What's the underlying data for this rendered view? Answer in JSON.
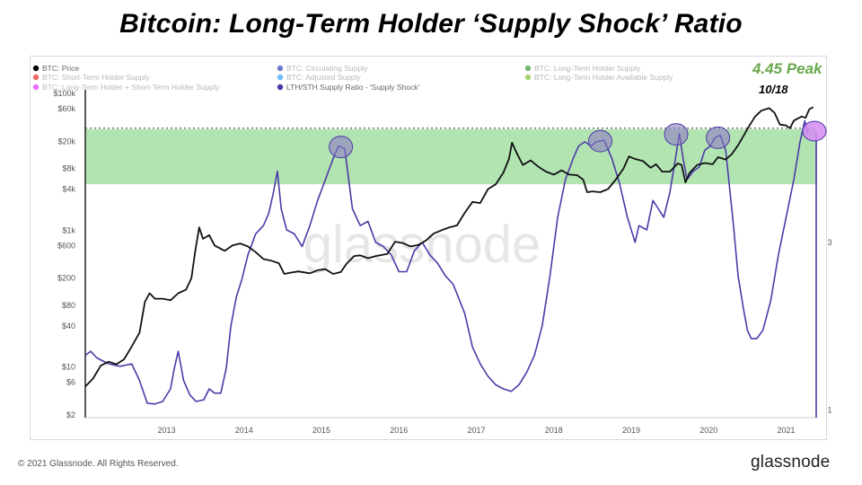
{
  "title": "Bitcoin: Long-Term Holder ‘Supply Shock’ Ratio",
  "footer": {
    "copyright": "© 2021 Glassnode. All Rights Reserved.",
    "brand": "glassnode"
  },
  "watermark": "glassnode",
  "annotation": {
    "peak_label": "4.45 Peak",
    "peak_date": "10/18"
  },
  "chart_data": {
    "type": "line",
    "legend": [
      {
        "name": "BTC: Price",
        "color": "#000000",
        "faded": false
      },
      {
        "name": "BTC: Short-Term Holder Supply",
        "color": "#e53935",
        "faded": true
      },
      {
        "name": "BTC: Long-Term Holder + Short-Term Holder Supply",
        "color": "#e040fb",
        "faded": true
      },
      {
        "name": "BTC: Circulating Supply",
        "color": "#3f51b5",
        "faded": true
      },
      {
        "name": "BTC: Adjusted Supply",
        "color": "#42a5f5",
        "faded": true
      },
      {
        "name": "LTH/STH Supply Ratio - 'Supply Shock'",
        "color": "#4a3aa7",
        "faded": false
      },
      {
        "name": "BTC: Long-Term Holder Supply",
        "color": "#43a047",
        "faded": true
      },
      {
        "name": "BTC: Long-Term Holder Available Supply",
        "color": "#8bc34a",
        "faded": true
      }
    ],
    "x_ticks": [
      "2013",
      "2014",
      "2015",
      "2016",
      "2017",
      "2018",
      "2019",
      "2020",
      "2021"
    ],
    "x_tick_years": [
      2013,
      2014,
      2015,
      2016,
      2017,
      2018,
      2019,
      2020,
      2021
    ],
    "x_range": [
      2012.45,
      2021.9
    ],
    "y_left_scale": "log",
    "y_left_range": [
      2,
      100000
    ],
    "y_left_ticks": [
      {
        "label": "$2",
        "value": 2
      },
      {
        "label": "$6",
        "value": 6
      },
      {
        "label": "$10",
        "value": 10
      },
      {
        "label": "$40",
        "value": 40
      },
      {
        "label": "$80",
        "value": 80
      },
      {
        "label": "$200",
        "value": 200
      },
      {
        "label": "$600",
        "value": 600
      },
      {
        "label": "$1k",
        "value": 1000
      },
      {
        "label": "$4k",
        "value": 4000
      },
      {
        "label": "$8k",
        "value": 8000
      },
      {
        "label": "$20k",
        "value": 20000
      },
      {
        "label": "$60k",
        "value": 60000
      },
      {
        "label": "$100k",
        "value": 100000
      }
    ],
    "y_right_ticks": [
      {
        "label": "1",
        "value": 1
      },
      {
        "label": "3",
        "value": 3
      }
    ],
    "y_right_range": [
      0.95,
      4.8
    ],
    "band": {
      "color": "#a5dfa5",
      "y_low": 4700,
      "y_high": 30000,
      "dashed_line": 31000
    },
    "series": [
      {
        "name": "BTC: Price",
        "axis": "left",
        "color": "#111111",
        "points": [
          [
            2012.45,
            5.2
          ],
          [
            2012.55,
            6.8
          ],
          [
            2012.65,
            10.5
          ],
          [
            2012.75,
            12
          ],
          [
            2012.85,
            11
          ],
          [
            2012.95,
            13
          ],
          [
            2013.05,
            20
          ],
          [
            2013.15,
            32
          ],
          [
            2013.22,
            90
          ],
          [
            2013.28,
            120
          ],
          [
            2013.35,
            100
          ],
          [
            2013.45,
            100
          ],
          [
            2013.55,
            95
          ],
          [
            2013.65,
            120
          ],
          [
            2013.75,
            135
          ],
          [
            2013.82,
            200
          ],
          [
            2013.87,
            500
          ],
          [
            2013.92,
            1100
          ],
          [
            2013.97,
            750
          ],
          [
            2014.05,
            850
          ],
          [
            2014.12,
            600
          ],
          [
            2014.25,
            500
          ],
          [
            2014.35,
            600
          ],
          [
            2014.45,
            640
          ],
          [
            2014.55,
            580
          ],
          [
            2014.65,
            480
          ],
          [
            2014.75,
            380
          ],
          [
            2014.85,
            360
          ],
          [
            2014.95,
            330
          ],
          [
            2015.02,
            230
          ],
          [
            2015.1,
            240
          ],
          [
            2015.2,
            250
          ],
          [
            2015.35,
            235
          ],
          [
            2015.45,
            260
          ],
          [
            2015.55,
            270
          ],
          [
            2015.65,
            230
          ],
          [
            2015.75,
            245
          ],
          [
            2015.82,
            320
          ],
          [
            2015.92,
            420
          ],
          [
            2016.0,
            430
          ],
          [
            2016.1,
            390
          ],
          [
            2016.2,
            420
          ],
          [
            2016.35,
            450
          ],
          [
            2016.45,
            680
          ],
          [
            2016.55,
            650
          ],
          [
            2016.65,
            580
          ],
          [
            2016.75,
            610
          ],
          [
            2016.85,
            710
          ],
          [
            2016.95,
            900
          ],
          [
            2017.05,
            1000
          ],
          [
            2017.15,
            1100
          ],
          [
            2017.25,
            1180
          ],
          [
            2017.35,
            1800
          ],
          [
            2017.45,
            2600
          ],
          [
            2017.55,
            2500
          ],
          [
            2017.65,
            4000
          ],
          [
            2017.75,
            4700
          ],
          [
            2017.85,
            7000
          ],
          [
            2017.92,
            11000
          ],
          [
            2017.96,
            19000
          ],
          [
            2018.02,
            13500
          ],
          [
            2018.1,
            9000
          ],
          [
            2018.2,
            10500
          ],
          [
            2018.3,
            8500
          ],
          [
            2018.4,
            7200
          ],
          [
            2018.5,
            6500
          ],
          [
            2018.6,
            7500
          ],
          [
            2018.7,
            6500
          ],
          [
            2018.8,
            6400
          ],
          [
            2018.88,
            5500
          ],
          [
            2018.93,
            3600
          ],
          [
            2019.0,
            3700
          ],
          [
            2019.1,
            3600
          ],
          [
            2019.2,
            4000
          ],
          [
            2019.3,
            5500
          ],
          [
            2019.4,
            8000
          ],
          [
            2019.47,
            12000
          ],
          [
            2019.55,
            11000
          ],
          [
            2019.65,
            10300
          ],
          [
            2019.75,
            8200
          ],
          [
            2019.82,
            9200
          ],
          [
            2019.9,
            7200
          ],
          [
            2020.0,
            7200
          ],
          [
            2020.1,
            9500
          ],
          [
            2020.15,
            9000
          ],
          [
            2020.2,
            5000
          ],
          [
            2020.25,
            6800
          ],
          [
            2020.35,
            9000
          ],
          [
            2020.45,
            9600
          ],
          [
            2020.55,
            9200
          ],
          [
            2020.62,
            11700
          ],
          [
            2020.72,
            10800
          ],
          [
            2020.8,
            13000
          ],
          [
            2020.88,
            17500
          ],
          [
            2020.95,
            24000
          ],
          [
            2021.02,
            33000
          ],
          [
            2021.1,
            46000
          ],
          [
            2021.18,
            56000
          ],
          [
            2021.28,
            61000
          ],
          [
            2021.35,
            52000
          ],
          [
            2021.42,
            35000
          ],
          [
            2021.5,
            34000
          ],
          [
            2021.55,
            31000
          ],
          [
            2021.6,
            40000
          ],
          [
            2021.7,
            46000
          ],
          [
            2021.75,
            44000
          ],
          [
            2021.8,
            59000
          ],
          [
            2021.85,
            63000
          ]
        ]
      },
      {
        "name": "LTH/STH Supply Ratio - 'Supply Shock'",
        "axis": "right",
        "color": "#4a3aa7",
        "points": [
          [
            2012.45,
            1.65
          ],
          [
            2012.52,
            1.7
          ],
          [
            2012.6,
            1.62
          ],
          [
            2012.75,
            1.55
          ],
          [
            2012.9,
            1.52
          ],
          [
            2013.05,
            1.55
          ],
          [
            2013.15,
            1.35
          ],
          [
            2013.25,
            1.08
          ],
          [
            2013.35,
            1.07
          ],
          [
            2013.45,
            1.1
          ],
          [
            2013.55,
            1.25
          ],
          [
            2013.6,
            1.5
          ],
          [
            2013.65,
            1.7
          ],
          [
            2013.72,
            1.35
          ],
          [
            2013.8,
            1.18
          ],
          [
            2013.88,
            1.1
          ],
          [
            2013.98,
            1.12
          ],
          [
            2014.05,
            1.25
          ],
          [
            2014.12,
            1.2
          ],
          [
            2014.2,
            1.2
          ],
          [
            2014.27,
            1.5
          ],
          [
            2014.33,
            2.0
          ],
          [
            2014.4,
            2.35
          ],
          [
            2014.47,
            2.55
          ],
          [
            2014.55,
            2.85
          ],
          [
            2014.65,
            3.1
          ],
          [
            2014.75,
            3.2
          ],
          [
            2014.82,
            3.35
          ],
          [
            2014.88,
            3.6
          ],
          [
            2014.93,
            3.85
          ],
          [
            2014.98,
            3.4
          ],
          [
            2015.05,
            3.15
          ],
          [
            2015.15,
            3.1
          ],
          [
            2015.25,
            2.95
          ],
          [
            2015.35,
            3.2
          ],
          [
            2015.45,
            3.5
          ],
          [
            2015.55,
            3.75
          ],
          [
            2015.65,
            4.0
          ],
          [
            2015.72,
            4.15
          ],
          [
            2015.8,
            4.12
          ],
          [
            2015.9,
            3.4
          ],
          [
            2016.0,
            3.2
          ],
          [
            2016.1,
            3.25
          ],
          [
            2016.2,
            3.0
          ],
          [
            2016.3,
            2.95
          ],
          [
            2016.4,
            2.85
          ],
          [
            2016.5,
            2.65
          ],
          [
            2016.6,
            2.65
          ],
          [
            2016.7,
            2.9
          ],
          [
            2016.8,
            3.0
          ],
          [
            2016.9,
            2.85
          ],
          [
            2017.0,
            2.75
          ],
          [
            2017.1,
            2.6
          ],
          [
            2017.2,
            2.5
          ],
          [
            2017.35,
            2.15
          ],
          [
            2017.45,
            1.75
          ],
          [
            2017.55,
            1.55
          ],
          [
            2017.65,
            1.4
          ],
          [
            2017.75,
            1.3
          ],
          [
            2017.85,
            1.25
          ],
          [
            2017.95,
            1.22
          ],
          [
            2018.05,
            1.3
          ],
          [
            2018.15,
            1.45
          ],
          [
            2018.25,
            1.65
          ],
          [
            2018.35,
            2.0
          ],
          [
            2018.45,
            2.6
          ],
          [
            2018.55,
            3.3
          ],
          [
            2018.65,
            3.75
          ],
          [
            2018.75,
            4.0
          ],
          [
            2018.82,
            4.15
          ],
          [
            2018.9,
            4.2
          ],
          [
            2018.98,
            4.15
          ],
          [
            2019.05,
            4.2
          ],
          [
            2019.15,
            4.22
          ],
          [
            2019.25,
            4.0
          ],
          [
            2019.35,
            3.7
          ],
          [
            2019.45,
            3.3
          ],
          [
            2019.55,
            3.0
          ],
          [
            2019.6,
            3.2
          ],
          [
            2019.7,
            3.15
          ],
          [
            2019.78,
            3.5
          ],
          [
            2019.85,
            3.4
          ],
          [
            2019.92,
            3.3
          ],
          [
            2020.0,
            3.6
          ],
          [
            2020.08,
            4.05
          ],
          [
            2020.12,
            4.3
          ],
          [
            2020.17,
            4.0
          ],
          [
            2020.22,
            3.75
          ],
          [
            2020.3,
            3.85
          ],
          [
            2020.38,
            3.9
          ],
          [
            2020.45,
            4.1
          ],
          [
            2020.52,
            4.15
          ],
          [
            2020.58,
            4.25
          ],
          [
            2020.65,
            4.28
          ],
          [
            2020.72,
            4.1
          ],
          [
            2020.82,
            3.2
          ],
          [
            2020.88,
            2.6
          ],
          [
            2020.95,
            2.2
          ],
          [
            2021.0,
            1.95
          ],
          [
            2021.05,
            1.85
          ],
          [
            2021.12,
            1.85
          ],
          [
            2021.2,
            1.95
          ],
          [
            2021.3,
            2.3
          ],
          [
            2021.4,
            2.85
          ],
          [
            2021.5,
            3.3
          ],
          [
            2021.6,
            3.75
          ],
          [
            2021.68,
            4.2
          ],
          [
            2021.74,
            4.45
          ],
          [
            2021.78,
            4.3
          ]
        ]
      }
    ],
    "highlight_circles": [
      {
        "x": 2015.75,
        "y": 4.15
      },
      {
        "x": 2019.1,
        "y": 4.22
      },
      {
        "x": 2020.08,
        "y": 4.3
      },
      {
        "x": 2020.62,
        "y": 4.26
      },
      {
        "x": 2021.8,
        "y": 4.45
      }
    ]
  }
}
